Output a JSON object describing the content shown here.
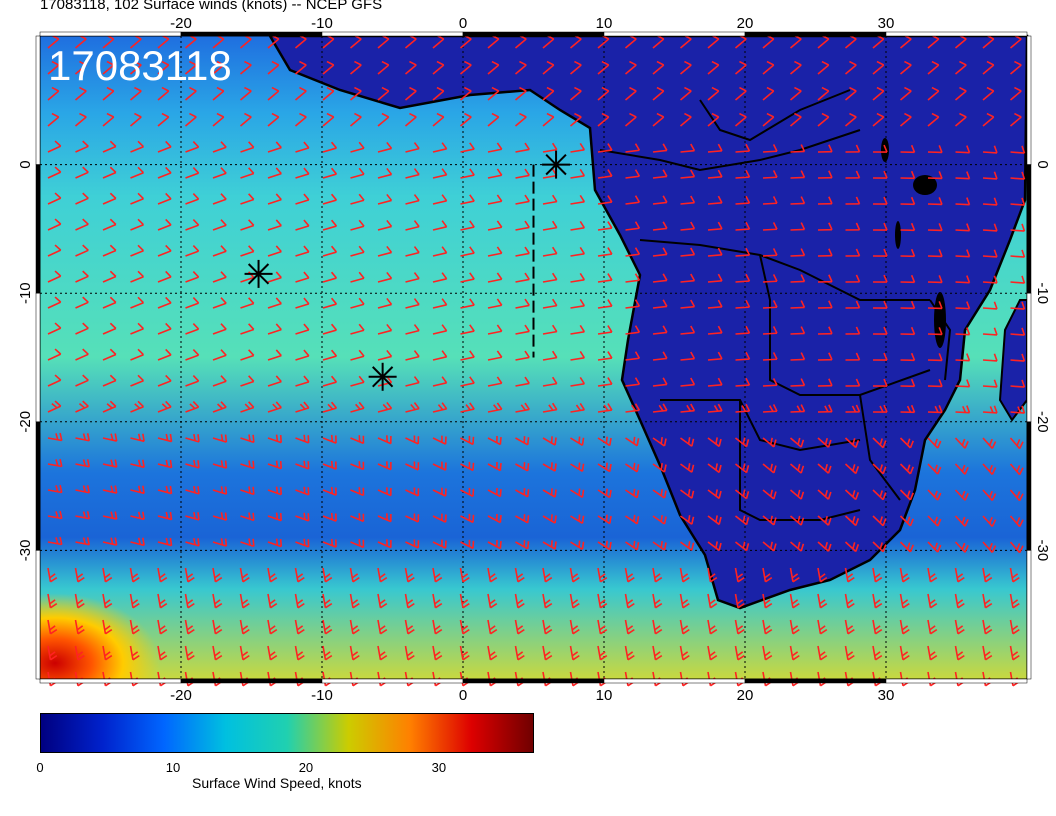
{
  "header": {
    "title": "17083118, 102 Surface winds (knots) -- NCEP GFS",
    "stamp": "17083118"
  },
  "map": {
    "lon_range": [
      -30,
      40
    ],
    "lat_range": [
      -40,
      10
    ],
    "lon_ticks": [
      "-20",
      "-10",
      "0",
      "10",
      "20",
      "30"
    ],
    "lat_ticks": [
      "0",
      "-10",
      "-20",
      "-30"
    ],
    "gridlines": "dotted",
    "barb_color": "#ff2222",
    "coast_color": "#000000",
    "markers": [
      {
        "name": "marker-1",
        "lon": -14.5,
        "lat": -8.5
      },
      {
        "name": "marker-2",
        "lon": -5.7,
        "lat": -16.5
      },
      {
        "name": "marker-3",
        "lon": 6.6,
        "lat": 0.0
      }
    ],
    "track": {
      "lon": 5.0,
      "lat_from": 0.0,
      "lat_to": -15.0
    }
  },
  "colorbar": {
    "label": "Surface Wind Speed, knots",
    "ticks": [
      "0",
      "10",
      "20",
      "30"
    ],
    "tick_values": [
      0,
      10,
      20,
      30
    ],
    "range": [
      0,
      37
    ],
    "colors": [
      "#000080",
      "#0022cc",
      "#0066ff",
      "#00c0e0",
      "#20d0b0",
      "#cccc00",
      "#ff8000",
      "#dd0000",
      "#700000"
    ]
  }
}
